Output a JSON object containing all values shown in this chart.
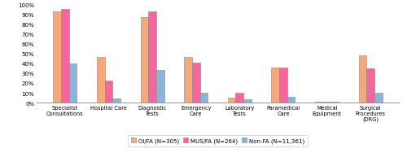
{
  "categories": [
    "Specialist\nConsultations",
    "Hospital Care",
    "Diagnostic\nTests",
    "Emergency\nCare",
    "Laboratory\nTests",
    "Paramedical\nCare",
    "Medical\nEquipment",
    "Surgical\nProcedures\n(DRG)"
  ],
  "series": {
    "OI/FA (N=305)": [
      93,
      46,
      87,
      46,
      5,
      36,
      1,
      48
    ],
    "MUS/FA (N=264)": [
      95,
      22,
      93,
      41,
      10,
      36,
      1,
      35
    ],
    "Non-FA (N=11,361)": [
      40,
      4,
      33,
      10,
      3,
      6,
      1,
      10
    ]
  },
  "colors": {
    "OI/FA (N=305)": "#F5A87B",
    "MUS/FA (N=264)": "#F4679C",
    "Non-FA (N=11,361)": "#8AB4D8"
  },
  "legend_labels": [
    "OI/FA (N=305)",
    "MUS/FA (N=264)",
    "Non-FA (N=11,361)"
  ],
  "ylim": [
    0,
    100
  ],
  "yticks": [
    0,
    10,
    20,
    30,
    40,
    50,
    60,
    70,
    80,
    90,
    100
  ],
  "ytick_labels": [
    "0%",
    "10%",
    "20%",
    "30%",
    "40%",
    "50%",
    "60%",
    "70%",
    "80%",
    "90%",
    "100%"
  ],
  "bar_width": 0.18,
  "figsize": [
    5.0,
    2.05
  ],
  "dpi": 100
}
